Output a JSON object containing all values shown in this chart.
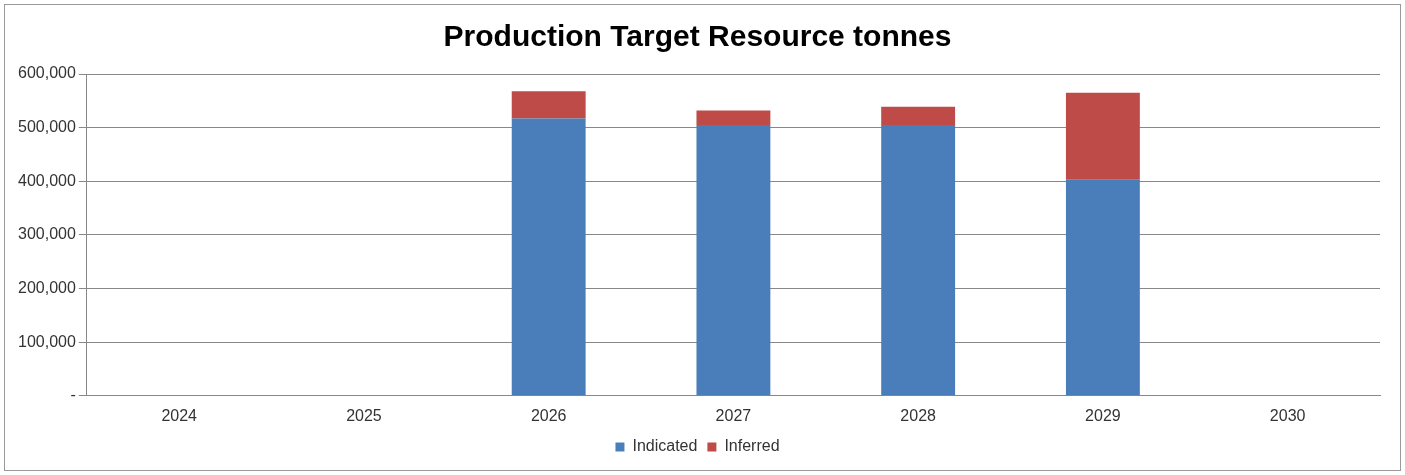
{
  "chart_data": {
    "type": "bar",
    "title": "Production Target Resource tonnes",
    "categories": [
      "2024",
      "2025",
      "2026",
      "2027",
      "2028",
      "2029",
      "2030"
    ],
    "series": [
      {
        "name": "Indicated",
        "color": "#4a7ebb",
        "values": [
          null,
          null,
          517000,
          505000,
          505000,
          403000,
          null
        ]
      },
      {
        "name": "Inferred",
        "color": "#be4b48",
        "values": [
          null,
          null,
          51000,
          27000,
          34000,
          162000,
          null
        ]
      }
    ],
    "stacked": true,
    "ylim": [
      0,
      600000
    ],
    "yticks": [
      {
        "value": 0,
        "label": "-"
      },
      {
        "value": 100000,
        "label": "100,000"
      },
      {
        "value": 200000,
        "label": "200,000"
      },
      {
        "value": 300000,
        "label": "300,000"
      },
      {
        "value": 400000,
        "label": "400,000"
      },
      {
        "value": 500000,
        "label": "500,000"
      },
      {
        "value": 600000,
        "label": "600,000"
      }
    ],
    "grid": "y",
    "legend": "bottom"
  }
}
